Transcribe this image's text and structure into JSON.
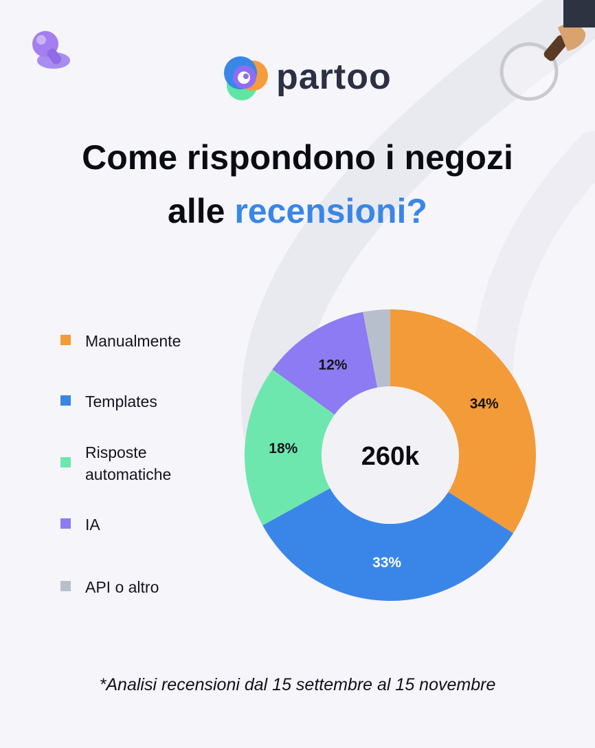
{
  "brand": {
    "name": "partoo"
  },
  "title": {
    "line1": "Come rispondono i negozi",
    "line2_plain": "alle ",
    "line2_accent": "recensioni?"
  },
  "chart_data": {
    "type": "pie",
    "subtype": "donut",
    "center_label": "260k",
    "categories": [
      "Manualmente",
      "Templates",
      "Risposte automatiche",
      "IA",
      "API o altro"
    ],
    "values": [
      34,
      33,
      18,
      12,
      3
    ],
    "value_labels": [
      "34%",
      "33%",
      "18%",
      "12%",
      ""
    ],
    "colors": [
      "#f29b38",
      "#3a86e8",
      "#6ee7ae",
      "#8c7bf2",
      "#b8bfcc"
    ],
    "label_colors": [
      "#14141c",
      "#ffffff",
      "#14141c",
      "#14141c",
      "#14141c"
    ],
    "legend_position": "left"
  },
  "footnote": "*Analisi recensioni dal 15 settembre al 15 novembre"
}
